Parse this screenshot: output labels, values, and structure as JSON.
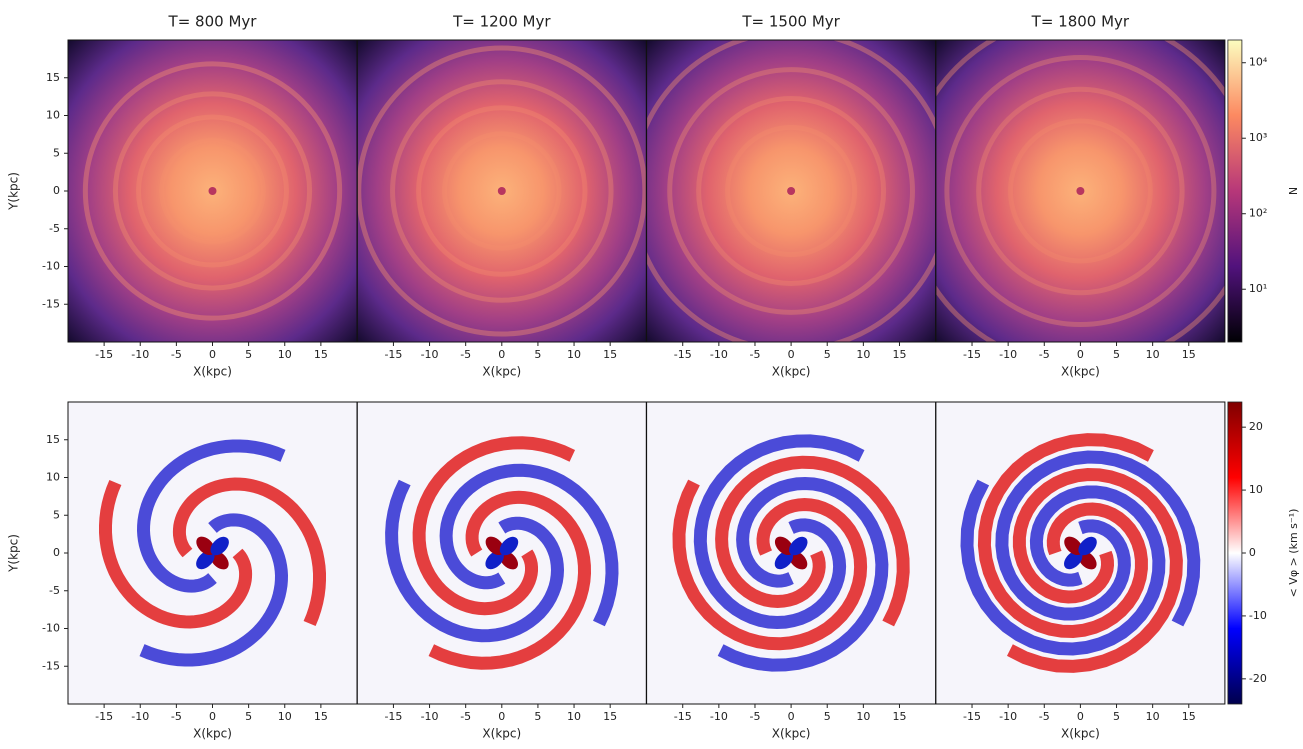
{
  "chart_data": [
    {
      "type": "heatmap",
      "title": "T= 800 Myr",
      "x_label": "X(kpc)",
      "y_label": "Y(kpc)",
      "xlim": [
        -20,
        20
      ],
      "ylim": [
        -20,
        20
      ],
      "xticks": [
        -15,
        -10,
        -5,
        0,
        5,
        10,
        15
      ],
      "yticks": [
        -15,
        -10,
        -5,
        0,
        5,
        10,
        15
      ],
      "colormap": "magma"
    },
    {
      "type": "heatmap",
      "title": "T= 1200 Myr",
      "x_label": "X(kpc)",
      "xlim": [
        -20,
        20
      ],
      "ylim": [
        -20,
        20
      ],
      "xticks": [
        -15,
        -10,
        -5,
        0,
        5,
        10,
        15
      ],
      "colormap": "magma"
    },
    {
      "type": "heatmap",
      "title": "T= 1500 Myr",
      "x_label": "X(kpc)",
      "xlim": [
        -20,
        20
      ],
      "ylim": [
        -20,
        20
      ],
      "xticks": [
        -15,
        -10,
        -5,
        0,
        5,
        10,
        15
      ],
      "colormap": "magma"
    },
    {
      "type": "heatmap",
      "title": "T= 1800 Myr",
      "x_label": "X(kpc)",
      "xlim": [
        -20,
        20
      ],
      "ylim": [
        -20,
        20
      ],
      "xticks": [
        -15,
        -10,
        -5,
        0,
        5,
        10,
        15
      ],
      "colormap": "magma",
      "colorbar": {
        "label": "N",
        "scale": "log",
        "lim": [
          2,
          20000
        ],
        "ticks": [
          {
            "value": 10,
            "label": "10¹"
          },
          {
            "value": 100,
            "label": "10²"
          },
          {
            "value": 1000,
            "label": "10³"
          },
          {
            "value": 10000,
            "label": "10⁴"
          }
        ]
      }
    },
    {
      "type": "heatmap",
      "x_label": "X(kpc)",
      "y_label": "Y(kpc)",
      "xlim": [
        -20,
        20
      ],
      "ylim": [
        -20,
        20
      ],
      "xticks": [
        -15,
        -10,
        -5,
        0,
        5,
        10,
        15
      ],
      "yticks": [
        -15,
        -10,
        -5,
        0,
        5,
        10,
        15
      ],
      "colormap": "seismic"
    },
    {
      "type": "heatmap",
      "x_label": "X(kpc)",
      "xlim": [
        -20,
        20
      ],
      "ylim": [
        -20,
        20
      ],
      "xticks": [
        -15,
        -10,
        -5,
        0,
        5,
        10,
        15
      ],
      "colormap": "seismic"
    },
    {
      "type": "heatmap",
      "x_label": "X(kpc)",
      "xlim": [
        -20,
        20
      ],
      "ylim": [
        -20,
        20
      ],
      "xticks": [
        -15,
        -10,
        -5,
        0,
        5,
        10,
        15
      ],
      "colormap": "seismic"
    },
    {
      "type": "heatmap",
      "x_label": "X(kpc)",
      "xlim": [
        -20,
        20
      ],
      "ylim": [
        -20,
        20
      ],
      "xticks": [
        -15,
        -10,
        -5,
        0,
        5,
        10,
        15
      ],
      "colormap": "seismic",
      "colorbar": {
        "label": "< Vφ > (km s⁻¹)",
        "scale": "linear",
        "lim": [
          -24,
          24
        ],
        "ticks": [
          -20,
          -10,
          0,
          10,
          20
        ]
      }
    }
  ]
}
